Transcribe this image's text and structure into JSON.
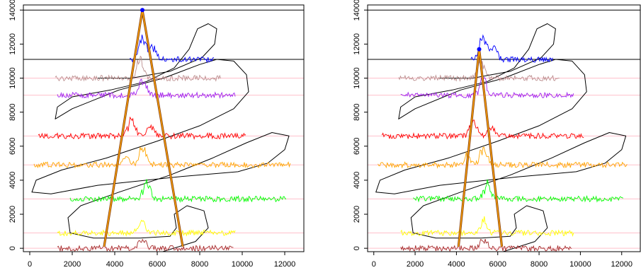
{
  "chart_data": [
    {
      "type": "line",
      "panel": "left",
      "xticks": [
        0,
        2000,
        4000,
        6000,
        8000,
        10000,
        12000
      ],
      "yticks": [
        0,
        2000,
        4000,
        6000,
        8000,
        10000,
        12000,
        14000
      ],
      "xlim": [
        -300,
        12900
      ],
      "ylim": [
        -200,
        14300
      ],
      "hlines": [
        14000,
        11100
      ],
      "traces": [
        {
          "color": "#0000ff",
          "baseline": 11100,
          "xmin": 4700,
          "xmax": 8700,
          "peaks": [
            [
              5300,
              1400
            ],
            [
              5800,
              600
            ]
          ]
        },
        {
          "color": "#bc8f8f",
          "baseline": 10000,
          "xmin": 1200,
          "xmax": 9000,
          "peaks": [
            [
              5200,
              1000
            ]
          ]
        },
        {
          "color": "#a020f0",
          "baseline": 9000,
          "xmin": 1300,
          "xmax": 9700,
          "peaks": [
            [
              5300,
              900
            ]
          ]
        },
        {
          "color": "#ff0000",
          "baseline": 6600,
          "xmin": 400,
          "xmax": 10200,
          "peaks": [
            [
              4800,
              900
            ],
            [
              5700,
              500
            ]
          ]
        },
        {
          "color": "#ffa500",
          "baseline": 4900,
          "xmin": 200,
          "xmax": 12300,
          "peaks": [
            [
              5300,
              1000
            ],
            [
              4500,
              500
            ]
          ]
        },
        {
          "color": "#00ff00",
          "baseline": 2900,
          "xmin": 1900,
          "xmax": 12100,
          "peaks": [
            [
              5500,
              900
            ]
          ]
        },
        {
          "color": "#ffff00",
          "baseline": 900,
          "xmin": 1300,
          "xmax": 9700,
          "peaks": [
            [
              5300,
              700
            ]
          ]
        },
        {
          "color": "#a52a2a",
          "baseline": 0,
          "xmin": 1300,
          "xmax": 9600,
          "peaks": [
            [
              5300,
              600
            ]
          ]
        }
      ],
      "triangle": [
        [
          3500,
          100
        ],
        [
          5300,
          14000
        ],
        [
          7200,
          100
        ]
      ],
      "apex_point": [
        5300,
        14000
      ]
    },
    {
      "type": "line",
      "panel": "right",
      "xticks": [
        0,
        2000,
        4000,
        6000,
        8000,
        10000,
        12000
      ],
      "yticks": [
        0,
        2000,
        4000,
        6000,
        8000,
        10000,
        12000,
        14000
      ],
      "xlim": [
        -300,
        12900
      ],
      "ylim": [
        -200,
        14300
      ],
      "hlines": [
        14000,
        11100
      ],
      "traces": [
        {
          "color": "#0000ff",
          "baseline": 11100,
          "xmin": 4700,
          "xmax": 8700,
          "peaks": [
            [
              5300,
              1400
            ],
            [
              5800,
              600
            ]
          ]
        },
        {
          "color": "#bc8f8f",
          "baseline": 10000,
          "xmin": 1200,
          "xmax": 9000,
          "peaks": [
            [
              5200,
              1000
            ]
          ]
        },
        {
          "color": "#a020f0",
          "baseline": 9000,
          "xmin": 1300,
          "xmax": 9700,
          "peaks": [
            [
              5300,
              900
            ]
          ]
        },
        {
          "color": "#ff0000",
          "baseline": 6600,
          "xmin": 400,
          "xmax": 10200,
          "peaks": [
            [
              4800,
              900
            ],
            [
              5700,
              500
            ]
          ]
        },
        {
          "color": "#ffa500",
          "baseline": 4900,
          "xmin": 200,
          "xmax": 12300,
          "peaks": [
            [
              5300,
              1000
            ],
            [
              4500,
              500
            ]
          ]
        },
        {
          "color": "#00ff00",
          "baseline": 2900,
          "xmin": 1900,
          "xmax": 12100,
          "peaks": [
            [
              5500,
              900
            ]
          ]
        },
        {
          "color": "#ffff00",
          "baseline": 900,
          "xmin": 1300,
          "xmax": 9700,
          "peaks": [
            [
              5300,
              700
            ]
          ]
        },
        {
          "color": "#a52a2a",
          "baseline": 0,
          "xmin": 1300,
          "xmax": 9600,
          "peaks": [
            [
              5300,
              600
            ]
          ]
        }
      ],
      "triangle": [
        [
          4100,
          100
        ],
        [
          5100,
          11700
        ],
        [
          6200,
          100
        ]
      ],
      "apex_point": [
        5100,
        11700
      ]
    }
  ]
}
